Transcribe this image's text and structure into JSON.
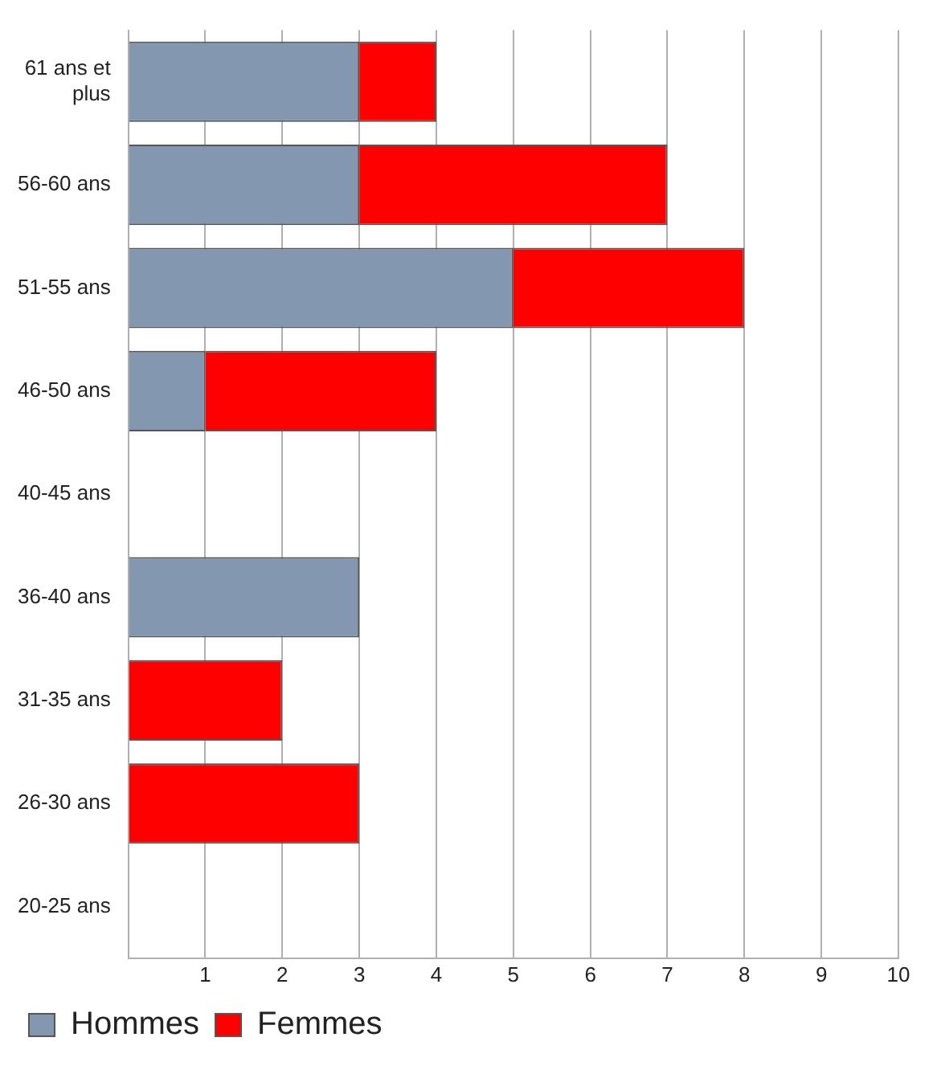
{
  "chart_data": {
    "type": "bar",
    "orientation": "horizontal",
    "stacked": true,
    "categories": [
      "61 ans et plus",
      "56-60 ans",
      "51-55 ans",
      "46-50 ans",
      "40-45 ans",
      "36-40 ans",
      "31-35 ans",
      "26-30 ans",
      "20-25 ans"
    ],
    "series": [
      {
        "name": "Hommes",
        "color": "#8497b0",
        "values": [
          3,
          3,
          5,
          1,
          null,
          3,
          null,
          null,
          null
        ]
      },
      {
        "name": "Femmes",
        "color": "#ff0000",
        "values": [
          1,
          4,
          3,
          3,
          null,
          null,
          2,
          3,
          null
        ]
      }
    ],
    "xlim": [
      0,
      10
    ],
    "xticks": [
      {
        "value": 0,
        "label": null
      },
      1,
      2,
      3,
      4,
      5,
      6,
      7,
      8,
      9,
      10
    ],
    "grid": "x",
    "legend": "bottom left"
  }
}
